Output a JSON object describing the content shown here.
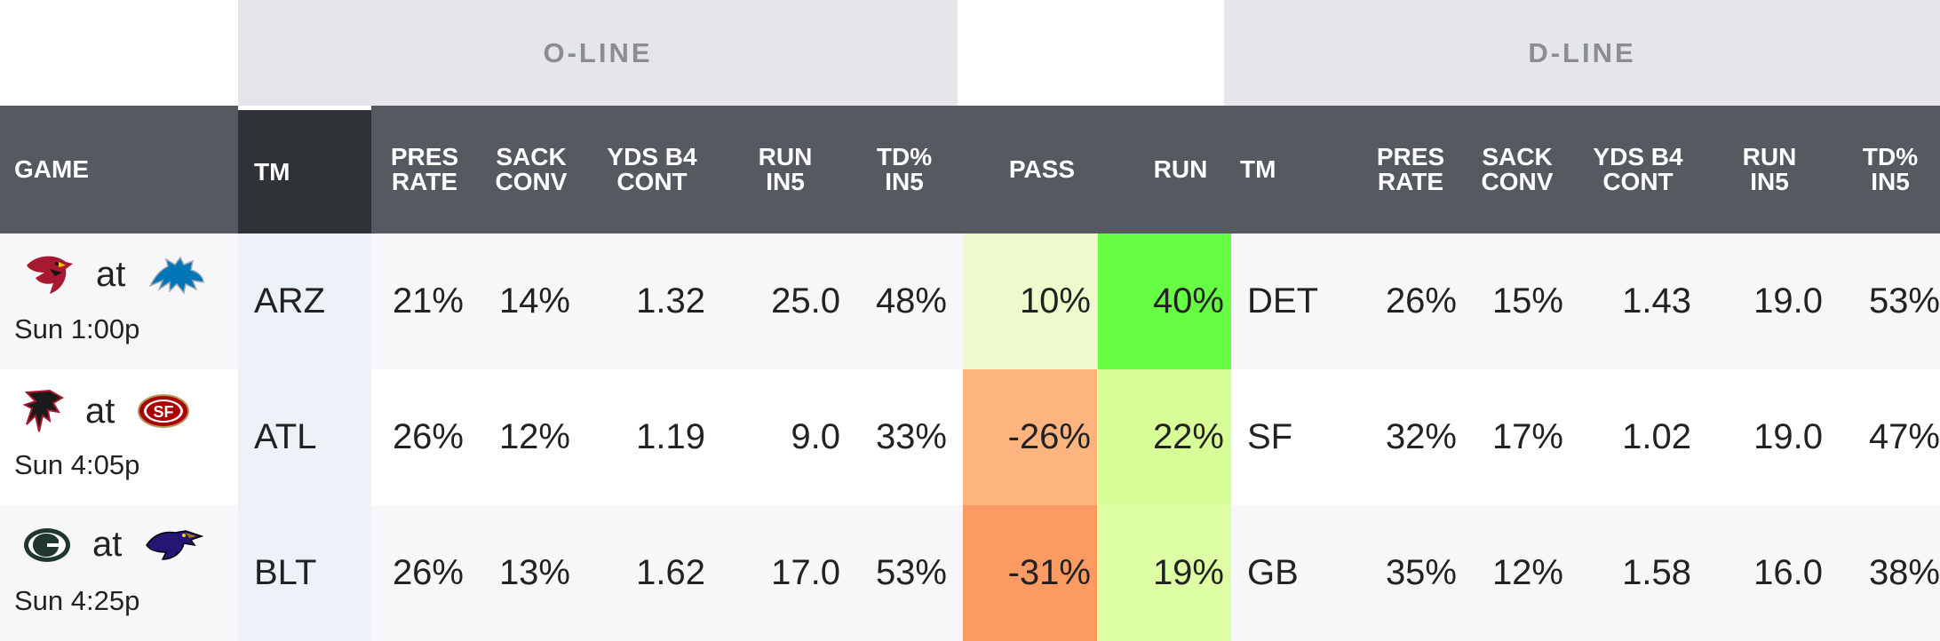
{
  "groups": {
    "oline": "O-LINE",
    "dline": "D-LINE"
  },
  "headers": {
    "game": "GAME",
    "tm": "TM",
    "pres_rate": "PRES\nRATE",
    "sack_conv": "SACK\nCONV",
    "yds_b4_cont": "YDS B4\nCONT",
    "run_in5": "RUN\nIN5",
    "td_in5": "TD%\nIN5",
    "pass": "PASS",
    "run": "RUN",
    "d_tm": "TM",
    "d_pres_rate": "PRES\nRATE",
    "d_sack_conv": "SACK\nCONV",
    "d_yds_b4_cont": "YDS B4\nCONT",
    "d_run_in5": "RUN\nIN5",
    "d_td_in5": "TD%\nIN5"
  },
  "rows": [
    {
      "game": {
        "away_logo": "cardinals-logo-icon",
        "home_logo": "lions-logo-icon",
        "at": "at",
        "time": "Sun 1:00p"
      },
      "tm": "ARZ",
      "pres_rate": "21%",
      "sack_conv": "14%",
      "yds_b4_cont": "1.32",
      "run_in5": "25.0",
      "td_in5": "48%",
      "pass": "10%",
      "pass_color": "#eefccd",
      "run": "40%",
      "run_color": "#66ff44",
      "d_tm": "DET",
      "d_pres_rate": "26%",
      "d_sack_conv": "15%",
      "d_yds_b4_cont": "1.43",
      "d_run_in5": "19.0",
      "d_td_in5": "53%"
    },
    {
      "game": {
        "away_logo": "falcons-logo-icon",
        "home_logo": "49ers-logo-icon",
        "at": "at",
        "time": "Sun 4:05p"
      },
      "tm": "ATL",
      "pres_rate": "26%",
      "sack_conv": "12%",
      "yds_b4_cont": "1.19",
      "run_in5": "9.0",
      "td_in5": "33%",
      "pass": "-26%",
      "pass_color": "#fdb47f",
      "run": "22%",
      "run_color": "#d8fe98",
      "d_tm": "SF",
      "d_pres_rate": "32%",
      "d_sack_conv": "17%",
      "d_yds_b4_cont": "1.02",
      "d_run_in5": "19.0",
      "d_td_in5": "47%"
    },
    {
      "game": {
        "away_logo": "packers-logo-icon",
        "home_logo": "ravens-logo-icon",
        "at": "at",
        "time": "Sun 4:25p"
      },
      "tm": "BLT",
      "pres_rate": "26%",
      "sack_conv": "13%",
      "yds_b4_cont": "1.62",
      "run_in5": "17.0",
      "td_in5": "53%",
      "pass": "-31%",
      "pass_color": "#fc9a64",
      "run": "19%",
      "run_color": "#ddfea4",
      "d_tm": "GB",
      "d_pres_rate": "35%",
      "d_sack_conv": "12%",
      "d_yds_b4_cont": "1.58",
      "d_run_in5": "16.0",
      "d_td_in5": "38%"
    }
  ]
}
